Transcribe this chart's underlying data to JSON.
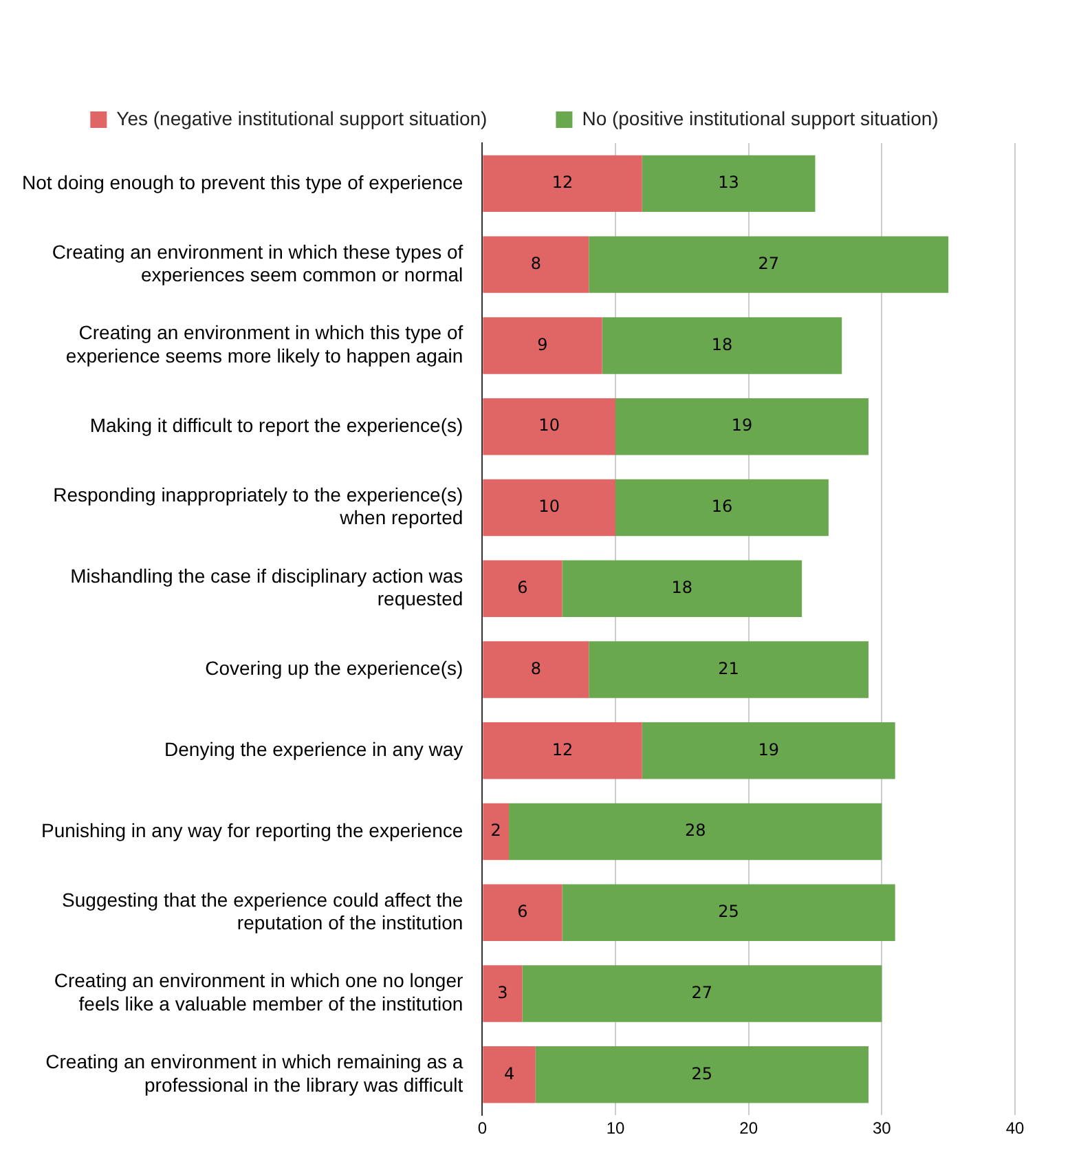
{
  "chart_data": {
    "type": "bar",
    "orientation": "horizontal",
    "stacked": true,
    "categories": [
      "Not doing enough to prevent this type of experience",
      "Creating an environment in which these types of experiences seem common or normal",
      "Creating an environment in which this type of experience seems more likely to happen again",
      "Making it difficult to report the experience(s)",
      "Responding inappropriately to the experience(s) when reported",
      "Mishandling the case if disciplinary action was requested",
      "Covering up the experience(s)",
      "Denying the experience in any way",
      "Punishing in any way for reporting the experience",
      "Suggesting that the experience could affect the reputation of the institution",
      "Creating an environment in which one no longer feels like a valuable member of the institution",
      "Creating an environment in which remaining as a professional in the library was difficult"
    ],
    "series": [
      {
        "name": "Yes (negative institutional support situation)",
        "color": "#e06666",
        "values": [
          12,
          8,
          9,
          10,
          10,
          6,
          8,
          12,
          2,
          6,
          3,
          4
        ]
      },
      {
        "name": "No (positive institutional support situation)",
        "color": "#6aa84f",
        "values": [
          13,
          27,
          18,
          19,
          16,
          18,
          21,
          19,
          28,
          25,
          27,
          25
        ]
      }
    ],
    "xlim": [
      0,
      40
    ],
    "xticks": [
      0,
      10,
      20,
      30,
      40
    ],
    "grid": "x",
    "legend": "top",
    "data_labels": true
  }
}
